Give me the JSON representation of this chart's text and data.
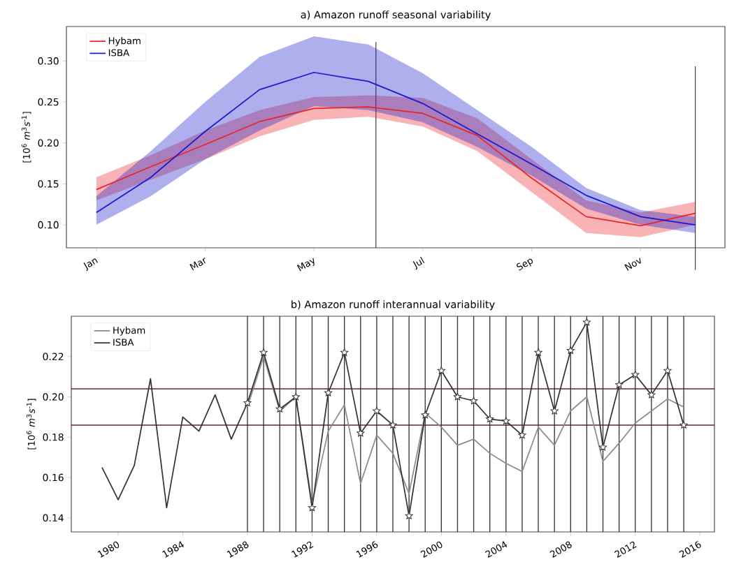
{
  "chart_data": [
    {
      "type": "line",
      "title": "a) Amazon runoff seasonal variability",
      "ylabel": "[10$^{6}$ *m*$^{3}$*s*$^{-1}$]",
      "categories": [
        "Jan",
        null,
        "Mar",
        null,
        "May",
        null,
        "Jul",
        null,
        "Sep",
        null,
        "Nov",
        null
      ],
      "ylim": [
        0.072,
        0.342
      ],
      "yticks": [
        {
          "value": 0.1,
          "label": "0.10"
        },
        {
          "value": 0.15,
          "label": "0.15"
        },
        {
          "value": 0.2,
          "label": "0.20"
        },
        {
          "value": 0.25,
          "label": "0.25"
        },
        {
          "value": 0.3,
          "label": "0.30"
        }
      ],
      "legend": "top left",
      "series": [
        {
          "name": "Hybam",
          "color": "#e8262a",
          "values": [
            0.143,
            0.171,
            0.198,
            0.226,
            0.242,
            0.244,
            0.236,
            0.209,
            0.157,
            0.11,
            0.099,
            0.114
          ],
          "lower": [
            0.13,
            0.155,
            0.18,
            0.208,
            0.228,
            0.232,
            0.22,
            0.19,
            0.14,
            0.09,
            0.085,
            0.1
          ],
          "upper": [
            0.158,
            0.185,
            0.215,
            0.24,
            0.256,
            0.258,
            0.255,
            0.23,
            0.18,
            0.13,
            0.115,
            0.128
          ]
        },
        {
          "name": "ISBA",
          "color": "#1a1acc",
          "values": [
            0.115,
            0.158,
            0.214,
            0.265,
            0.286,
            0.275,
            0.248,
            0.211,
            0.174,
            0.136,
            0.11,
            0.1
          ],
          "lower": [
            0.1,
            0.135,
            0.18,
            0.215,
            0.245,
            0.24,
            0.225,
            0.195,
            0.16,
            0.12,
            0.1,
            0.09
          ],
          "upper": [
            0.135,
            0.19,
            0.25,
            0.305,
            0.33,
            0.32,
            0.285,
            0.24,
            0.195,
            0.145,
            0.118,
            0.11
          ]
        }
      ]
    },
    {
      "type": "line",
      "title": "b) Amazon runoff interannual variability",
      "ylabel": "[10$^{6}$ *m*$^{3}$*s*$^{-1}$]",
      "x": [
        1979,
        1980,
        1981,
        1982,
        1983,
        1984,
        1985,
        1986,
        1987,
        1988,
        1989,
        1990,
        1991,
        1992,
        1993,
        1994,
        1995,
        1996,
        1997,
        1998,
        1999,
        2000,
        2001,
        2002,
        2003,
        2004,
        2005,
        2006,
        2007,
        2008,
        2009,
        2010,
        2011,
        2012,
        2013,
        2014,
        2015
      ],
      "xlim": [
        1977.1,
        2016.9
      ],
      "ylim": [
        0.133,
        0.24
      ],
      "xticks": [
        1980,
        1984,
        1988,
        1992,
        1996,
        2000,
        2004,
        2008,
        2012,
        2016
      ],
      "yticks": [
        {
          "value": 0.14,
          "label": "0.14"
        },
        {
          "value": 0.16,
          "label": "0.16"
        },
        {
          "value": 0.18,
          "label": "0.18"
        },
        {
          "value": 0.2,
          "label": "0.20"
        },
        {
          "value": 0.22,
          "label": "0.22"
        }
      ],
      "legend": "top left",
      "series": [
        {
          "name": "Hybam",
          "color": "#8c8c8c",
          "values": [
            null,
            null,
            null,
            null,
            null,
            null,
            null,
            null,
            null,
            0.195,
            0.22,
            0.193,
            0.2,
            0.147,
            0.183,
            0.196,
            0.157,
            0.181,
            0.172,
            0.152,
            0.192,
            0.185,
            0.176,
            0.179,
            0.172,
            0.167,
            0.163,
            0.185,
            0.176,
            0.193,
            0.2,
            0.168,
            0.177,
            0.187,
            0.193,
            0.199,
            0.195
          ]
        },
        {
          "name": "ISBA",
          "color": "#333333",
          "values": [
            0.165,
            0.149,
            0.166,
            0.209,
            0.145,
            0.19,
            0.183,
            0.201,
            0.179,
            0.197,
            0.222,
            0.194,
            0.2,
            0.145,
            0.202,
            0.222,
            0.182,
            0.193,
            0.186,
            0.141,
            0.191,
            0.213,
            0.2,
            0.198,
            0.189,
            0.188,
            0.181,
            0.222,
            0.193,
            0.223,
            0.237,
            0.175,
            0.206,
            0.211,
            0.201,
            0.213,
            0.186
          ]
        },
        {
          "type": "scatter",
          "marker": "star",
          "color": "#333333",
          "x": [
            1988,
            1989,
            1990,
            1991,
            1992,
            1993,
            1994,
            1995,
            1996,
            1997,
            1998,
            1999,
            2000,
            2001,
            2002,
            2003,
            2004,
            2005,
            2006,
            2007,
            2008,
            2009,
            2010,
            2011,
            2012,
            2013,
            2014,
            2015
          ],
          "values": [
            0.197,
            0.222,
            0.194,
            0.2,
            0.145,
            0.202,
            0.222,
            0.182,
            0.193,
            0.186,
            0.141,
            0.191,
            0.213,
            0.2,
            0.198,
            0.189,
            0.188,
            0.181,
            0.222,
            0.193,
            0.223,
            0.237,
            0.175,
            0.206,
            0.211,
            0.201,
            0.213,
            0.186
          ]
        }
      ],
      "ref_lines": [
        {
          "axis": "y",
          "value": 0.204,
          "color": "#5a2a2a"
        },
        {
          "axis": "y",
          "value": 0.186,
          "color": "#5a2a2a"
        },
        {
          "axis": "x",
          "value": 1988,
          "color": "#333333"
        },
        {
          "axis": "x",
          "value": 1989,
          "color": "#333333"
        },
        {
          "axis": "x",
          "value": 1990,
          "color": "#333333"
        },
        {
          "axis": "x",
          "value": 1991,
          "color": "#333333"
        },
        {
          "axis": "x",
          "value": 1992,
          "color": "#333333"
        },
        {
          "axis": "x",
          "value": 1993,
          "color": "#333333"
        },
        {
          "axis": "x",
          "value": 1994,
          "color": "#333333"
        },
        {
          "axis": "x",
          "value": 1995,
          "color": "#333333"
        },
        {
          "axis": "x",
          "value": 1996,
          "color": "#333333"
        },
        {
          "axis": "x",
          "value": 1997,
          "color": "#333333"
        },
        {
          "axis": "x",
          "value": 1998,
          "color": "#333333"
        },
        {
          "axis": "x",
          "value": 1999,
          "color": "#333333"
        },
        {
          "axis": "x",
          "value": 2000,
          "color": "#333333"
        },
        {
          "axis": "x",
          "value": 2001,
          "color": "#333333"
        },
        {
          "axis": "x",
          "value": 2002,
          "color": "#333333"
        },
        {
          "axis": "x",
          "value": 2003,
          "color": "#333333"
        },
        {
          "axis": "x",
          "value": 2004,
          "color": "#333333"
        },
        {
          "axis": "x",
          "value": 2005,
          "color": "#333333"
        },
        {
          "axis": "x",
          "value": 2006,
          "color": "#333333"
        },
        {
          "axis": "x",
          "value": 2007,
          "color": "#333333"
        },
        {
          "axis": "x",
          "value": 2008,
          "color": "#333333"
        },
        {
          "axis": "x",
          "value": 2009,
          "color": "#333333"
        },
        {
          "axis": "x",
          "value": 2010,
          "color": "#333333"
        },
        {
          "axis": "x",
          "value": 2011,
          "color": "#333333"
        },
        {
          "axis": "x",
          "value": 2012,
          "color": "#333333"
        },
        {
          "axis": "x",
          "value": 2013,
          "color": "#333333"
        },
        {
          "axis": "x",
          "value": 2014,
          "color": "#333333"
        },
        {
          "axis": "x",
          "value": 2015,
          "color": "#333333"
        }
      ]
    }
  ]
}
